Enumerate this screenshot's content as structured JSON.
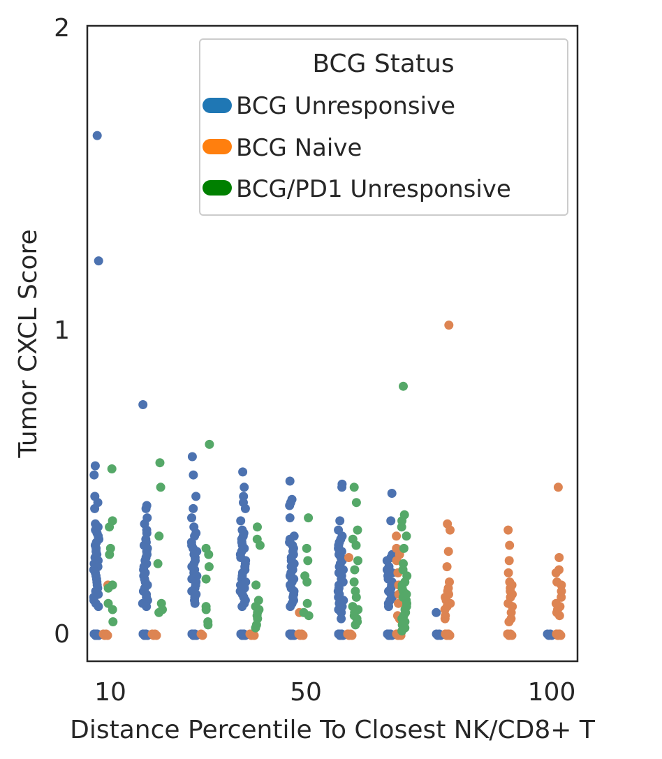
{
  "chart_data": {
    "type": "scatter",
    "title": "",
    "xlabel": "Distance Percentile To Closest NK/CD8+ T",
    "ylabel": "Tumor CXCL Score",
    "xlim": [
      7.5,
      105
    ],
    "ylim": [
      -0.09,
      2.0
    ],
    "x_ticks": [
      10,
      50,
      100
    ],
    "x_tick_labels": [
      "10",
      "50",
      "100"
    ],
    "y_ticks": [
      0,
      1,
      2
    ],
    "y_tick_labels": [
      "0",
      "1",
      "2"
    ],
    "grid": false,
    "legend": {
      "title": "BCG Status",
      "placement": "top-right",
      "entries": [
        {
          "label": "BCG Unresponsive",
          "color": "#1f77b4"
        },
        {
          "label": "BCG Naive",
          "color": "#ff7f0e"
        },
        {
          "label": "BCG/PD1 Unresponsive",
          "color": "#008000"
        }
      ]
    },
    "series": [
      {
        "status": "BCG Unresponsive",
        "color": "#4c72b0",
        "groups": [
          {
            "x": 10,
            "zeros": 14,
            "values": [
              1.63,
              1.22,
              0.55,
              0.52,
              0.45,
              0.43,
              0.41,
              0.36,
              0.35,
              0.34,
              0.33,
              0.32,
              0.31,
              0.3,
              0.29,
              0.28,
              0.27,
              0.26,
              0.25,
              0.24,
              0.23,
              0.22,
              0.21,
              0.2,
              0.19,
              0.18,
              0.17,
              0.16,
              0.15,
              0.14,
              0.13,
              0.12,
              0.11,
              0.1,
              0.09
            ]
          },
          {
            "x": 20,
            "zeros": 10,
            "values": [
              0.75,
              0.42,
              0.41,
              0.38,
              0.36,
              0.34,
              0.33,
              0.31,
              0.3,
              0.29,
              0.28,
              0.27,
              0.26,
              0.25,
              0.24,
              0.23,
              0.22,
              0.21,
              0.2,
              0.19,
              0.18,
              0.17,
              0.16,
              0.15,
              0.14,
              0.13,
              0.12,
              0.11,
              0.1,
              0.09
            ]
          },
          {
            "x": 30,
            "zeros": 10,
            "values": [
              0.58,
              0.52,
              0.45,
              0.41,
              0.38,
              0.35,
              0.33,
              0.32,
              0.3,
              0.29,
              0.28,
              0.27,
              0.26,
              0.25,
              0.24,
              0.23,
              0.22,
              0.21,
              0.2,
              0.19,
              0.18,
              0.17,
              0.16,
              0.15,
              0.14,
              0.13,
              0.12,
              0.11,
              0.1
            ]
          },
          {
            "x": 40,
            "zeros": 11,
            "values": [
              0.53,
              0.48,
              0.45,
              0.43,
              0.41,
              0.37,
              0.34,
              0.33,
              0.32,
              0.31,
              0.3,
              0.29,
              0.28,
              0.27,
              0.26,
              0.25,
              0.24,
              0.23,
              0.22,
              0.21,
              0.2,
              0.19,
              0.18,
              0.17,
              0.16,
              0.15,
              0.14,
              0.13,
              0.12,
              0.11,
              0.1,
              0.09
            ]
          },
          {
            "x": 50,
            "zeros": 13,
            "values": [
              0.5,
              0.44,
              0.43,
              0.42,
              0.38,
              0.32,
              0.31,
              0.3,
              0.29,
              0.28,
              0.27,
              0.26,
              0.25,
              0.24,
              0.23,
              0.22,
              0.21,
              0.2,
              0.19,
              0.18,
              0.17,
              0.16,
              0.15,
              0.14,
              0.13,
              0.12,
              0.11,
              0.1,
              0.09
            ]
          },
          {
            "x": 60,
            "zeros": 10,
            "values": [
              0.49,
              0.48,
              0.37,
              0.34,
              0.32,
              0.31,
              0.3,
              0.29,
              0.28,
              0.27,
              0.26,
              0.25,
              0.24,
              0.23,
              0.22,
              0.21,
              0.2,
              0.19,
              0.18,
              0.17,
              0.16,
              0.15,
              0.14,
              0.13,
              0.12,
              0.11,
              0.1,
              0.09,
              0.08,
              0.07,
              0.05
            ]
          },
          {
            "x": 70,
            "zeros": 10,
            "values": [
              0.46,
              0.37,
              0.26,
              0.25,
              0.24,
              0.22,
              0.21,
              0.2,
              0.19,
              0.18,
              0.17,
              0.16,
              0.15,
              0.14,
              0.13,
              0.12,
              0.11,
              0.1,
              0.09
            ]
          },
          {
            "x": 80,
            "zeros": 4,
            "values": [
              0.07
            ]
          },
          {
            "x": 90,
            "zeros": 0,
            "values": []
          },
          {
            "x": 100,
            "zeros": 4,
            "values": []
          }
        ]
      },
      {
        "status": "BCG Naive",
        "color": "#dd8452",
        "groups": [
          {
            "x": 10,
            "zeros": 4,
            "values": [
              0.16
            ]
          },
          {
            "x": 20,
            "zeros": 4,
            "values": []
          },
          {
            "x": 30,
            "zeros": 2,
            "values": []
          },
          {
            "x": 40,
            "zeros": 4,
            "values": []
          },
          {
            "x": 50,
            "zeros": 5,
            "values": [
              0.07
            ]
          },
          {
            "x": 60,
            "zeros": 5,
            "values": [
              0.25
            ]
          },
          {
            "x": 70,
            "zeros": 8,
            "values": [
              0.32,
              0.28,
              0.26,
              0.24,
              0.2,
              0.16,
              0.13,
              0.1,
              0.06,
              0.05
            ]
          },
          {
            "x": 80,
            "zeros": 8,
            "values": [
              1.01,
              0.36,
              0.34,
              0.27,
              0.22,
              0.17,
              0.15,
              0.14,
              0.13,
              0.12,
              0.11,
              0.1,
              0.09,
              0.08,
              0.06,
              0.05
            ]
          },
          {
            "x": 90,
            "zeros": 6,
            "values": [
              0.34,
              0.29,
              0.24,
              0.2,
              0.17,
              0.16,
              0.15,
              0.14,
              0.13,
              0.12,
              0.1,
              0.09,
              0.07,
              0.05,
              0.04
            ]
          },
          {
            "x": 100,
            "zeros": 7,
            "values": [
              0.48,
              0.25,
              0.21,
              0.2,
              0.17,
              0.16,
              0.14,
              0.12,
              0.1,
              0.09,
              0.08,
              0.07,
              0.06
            ]
          }
        ]
      },
      {
        "status": "BCG/PD1 Unresponsive",
        "color": "#55a868",
        "groups": [
          {
            "x": 10,
            "zeros": 0,
            "values": [
              0.54,
              0.37,
              0.35,
              0.28,
              0.26,
              0.16,
              0.15,
              0.1,
              0.08,
              0.04
            ]
          },
          {
            "x": 20,
            "zeros": 0,
            "values": [
              0.56,
              0.48,
              0.32,
              0.23,
              0.1,
              0.08,
              0.07
            ]
          },
          {
            "x": 30,
            "zeros": 0,
            "values": [
              0.62,
              0.28,
              0.26,
              0.22,
              0.18,
              0.09,
              0.08,
              0.04,
              0.03
            ]
          },
          {
            "x": 40,
            "zeros": 0,
            "values": [
              0.35,
              0.31,
              0.29,
              0.16,
              0.11,
              0.09,
              0.08,
              0.07,
              0.06,
              0.05,
              0.03,
              0.02
            ]
          },
          {
            "x": 50,
            "zeros": 0,
            "values": [
              0.38,
              0.28,
              0.24,
              0.19,
              0.17,
              0.1,
              0.07,
              0.06
            ]
          },
          {
            "x": 60,
            "zeros": 0,
            "values": [
              0.48,
              0.43,
              0.34,
              0.31,
              0.29,
              0.24,
              0.21,
              0.17,
              0.14,
              0.12,
              0.09,
              0.08,
              0.07,
              0.06,
              0.05,
              0.04,
              0.03
            ]
          },
          {
            "x": 70,
            "zeros": 0,
            "values": [
              0.81,
              0.39,
              0.37,
              0.35,
              0.32,
              0.28,
              0.23,
              0.21,
              0.19,
              0.17,
              0.16,
              0.15,
              0.14,
              0.13,
              0.12,
              0.11,
              0.1,
              0.09,
              0.08,
              0.07,
              0.06,
              0.05,
              0.04,
              0.03,
              0.02,
              0.01
            ]
          },
          {
            "x": 80,
            "zeros": 0,
            "values": []
          },
          {
            "x": 90,
            "zeros": 0,
            "values": []
          },
          {
            "x": 100,
            "zeros": 0,
            "values": []
          }
        ]
      }
    ]
  }
}
